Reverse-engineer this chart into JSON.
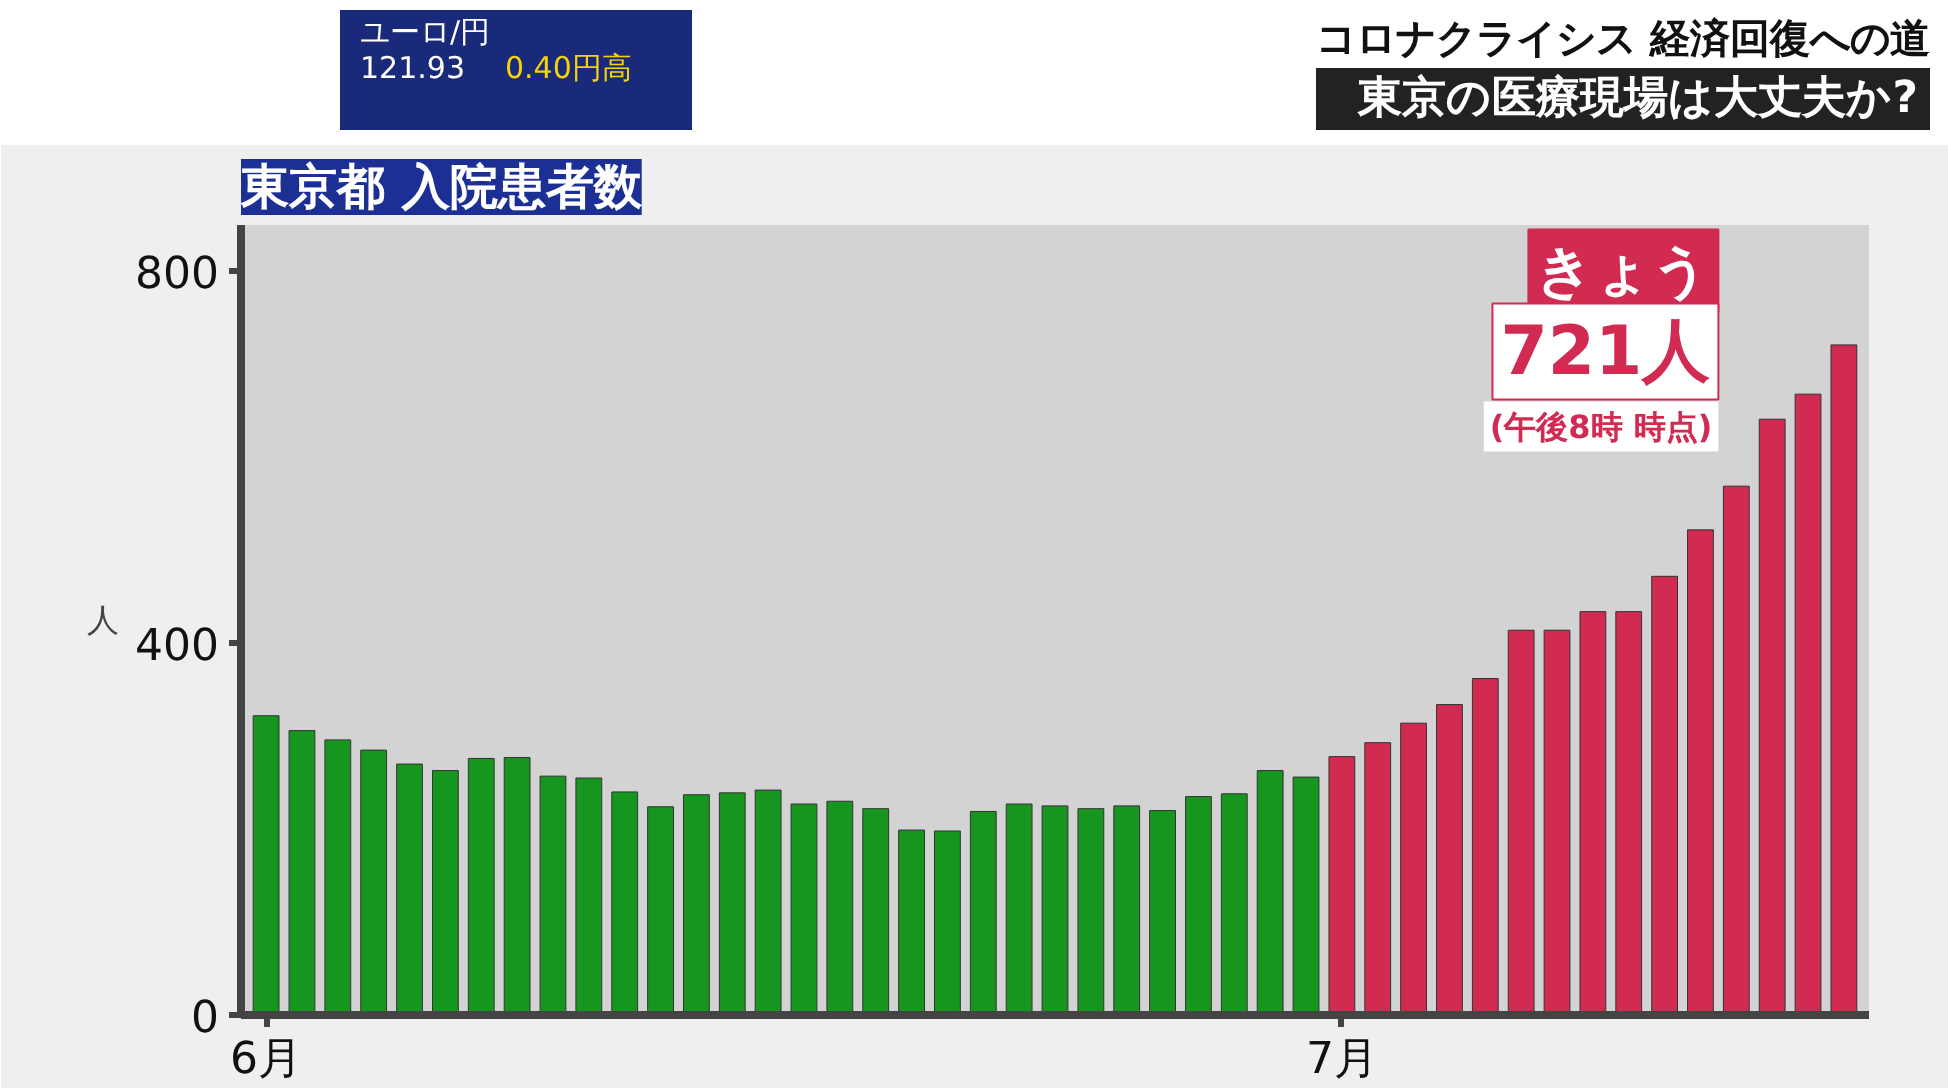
{
  "chart_data": {
    "type": "bar",
    "title": "東京都 入院患者数",
    "subtitle": "東京の医療現場は大丈夫か?",
    "ylabel": "人",
    "annotations": [
      "コロナクライシス 経済回復への道",
      "ユーロ/円",
      "121.93",
      "0.40円高",
      "きょう",
      "(午後8時 時点)",
      "721人"
    ],
    "categories": [
      "6月",
      null,
      null,
      null,
      null,
      null,
      null,
      null,
      null,
      null,
      null,
      null,
      null,
      null,
      null,
      null,
      null,
      null,
      null,
      null,
      null,
      null,
      null,
      null,
      null,
      null,
      null,
      null,
      null,
      null,
      "7月",
      null,
      null,
      null,
      null,
      null,
      null,
      null,
      null,
      null,
      null,
      null,
      null,
      null,
      null
    ],
    "values": [
      322,
      306,
      296,
      285,
      270,
      263,
      276,
      277,
      257,
      255,
      240,
      224,
      237,
      239,
      242,
      227,
      230,
      222,
      199,
      198,
      219,
      227,
      225,
      222,
      225,
      220,
      235,
      238,
      263,
      256,
      278,
      293,
      314,
      334,
      362,
      414,
      414,
      434,
      434,
      472,
      522,
      569,
      641,
      668,
      721
    ],
    "colors": [
      "#17961f",
      "#17961f",
      "#17961f",
      "#17961f",
      "#17961f",
      "#17961f",
      "#17961f",
      "#17961f",
      "#17961f",
      "#17961f",
      "#17961f",
      "#17961f",
      "#17961f",
      "#17961f",
      "#17961f",
      "#17961f",
      "#17961f",
      "#17961f",
      "#17961f",
      "#17961f",
      "#17961f",
      "#17961f",
      "#17961f",
      "#17961f",
      "#17961f",
      "#17961f",
      "#17961f",
      "#17961f",
      "#17961f",
      "#17961f",
      "#d22b52",
      "#d22b52",
      "#d22b52",
      "#d22b52",
      "#d22b52",
      "#d22b52",
      "#d22b52",
      "#d22b52",
      "#d22b52",
      "#d22b52",
      "#d22b52",
      "#d22b52",
      "#d22b52",
      "#d22b52",
      "#d22b52"
    ],
    "ylim": [
      0,
      850
    ],
    "yticks": [
      0,
      400,
      800
    ],
    "grid": false
  }
}
